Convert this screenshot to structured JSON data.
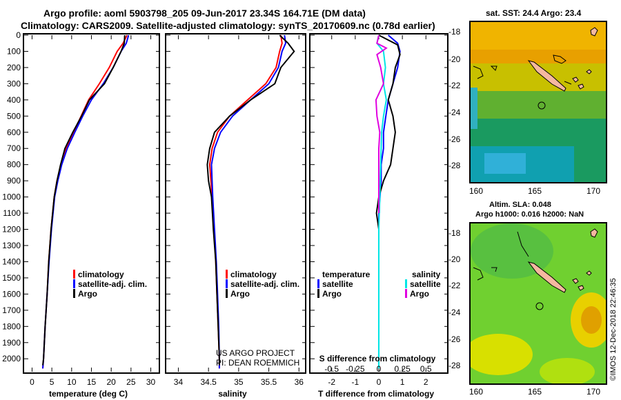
{
  "header": {
    "line1": "Argo profile: aoml 5903798_205 09-Jun-2017 23.34S 164.71E (DM data)",
    "line2": "Climatology: CARS2009. Satellite-adjusted climatology: synTS_20170609.nc (0.78d earlier)"
  },
  "depth_ticks": [
    "0",
    "100",
    "200",
    "300",
    "400",
    "500",
    "600",
    "700",
    "800",
    "900",
    "1000",
    "1100",
    "1200",
    "1300",
    "1400",
    "1500",
    "1600",
    "1700",
    "1800",
    "1900",
    "2000"
  ],
  "temp_panel": {
    "xlabel": "temperature (deg C)",
    "xticks": [
      "0",
      "5",
      "10",
      "15",
      "20",
      "25",
      "30"
    ],
    "legend": [
      "climatology",
      "satellite-adj. clim.",
      "Argo"
    ]
  },
  "sal_panel": {
    "xlabel": "salinity",
    "xticks": [
      "34",
      "34.5",
      "35",
      "35.5",
      "36"
    ],
    "legend": [
      "climatology",
      "satellite-adj. clim.",
      "Argo"
    ],
    "credit1": "US ARGO PROJECT",
    "credit2": "PI: DEAN ROEMMICH"
  },
  "diff_panel": {
    "xlabel": "T difference from climatology",
    "top_label": "S difference from climatology",
    "xticks": [
      "-2",
      "-1",
      "0",
      "1",
      "2"
    ],
    "top_ticks": [
      "-0.5",
      "-0.25",
      "0",
      "0.25",
      "0.5"
    ],
    "legend_t_title": "temperature",
    "legend_s_title": "salinity",
    "legend_t": [
      "satellite",
      "Argo"
    ],
    "legend_s": [
      "satellite",
      "Argo"
    ]
  },
  "map_top": {
    "title": "sat. SST: 24.4 Argo: 23.4",
    "lat_ticks": [
      "-18",
      "-20",
      "-22",
      "-24",
      "-26",
      "-28"
    ],
    "lon_ticks": [
      "160",
      "165",
      "170"
    ]
  },
  "map_bottom": {
    "title1": "Altim. SLA: 0.048",
    "title2": "Argo h1000: 0.016 h2000: NaN",
    "lat_ticks": [
      "-18",
      "-20",
      "-22",
      "-24",
      "-26",
      "-28"
    ],
    "lon_ticks": [
      "160",
      "165",
      "170"
    ]
  },
  "footer": "©IMOS 12-Dec-2018 22:46:35",
  "colors": {
    "climatology": "#ff0000",
    "satellite": "#0000ff",
    "argo": "#000000",
    "sal_satellite": "#00e5e5",
    "sal_argo": "#e000e0"
  },
  "chart_data": [
    {
      "type": "line",
      "xlabel": "temperature (deg C)",
      "ylabel": "",
      "xlim": [
        -2,
        32
      ],
      "ylim": [
        2080,
        0
      ],
      "series": [
        {
          "name": "climatology",
          "values": [
            [
              24,
              0
            ],
            [
              23,
              50
            ],
            [
              21.5,
              100
            ],
            [
              19.5,
              200
            ],
            [
              17,
              300
            ],
            [
              14.3,
              400
            ],
            [
              12.4,
              500
            ],
            [
              10.5,
              600
            ],
            [
              8.6,
              700
            ],
            [
              7.3,
              800
            ],
            [
              6.3,
              900
            ],
            [
              5.6,
              1000
            ],
            [
              4.8,
              1200
            ],
            [
              4.2,
              1400
            ],
            [
              3.8,
              1600
            ],
            [
              3.3,
              1800
            ],
            [
              2.9,
              2000
            ],
            [
              2.7,
              2060
            ]
          ]
        },
        {
          "name": "satellite-adj. clim.",
          "values": [
            [
              24.4,
              0
            ],
            [
              23.8,
              50
            ],
            [
              22.5,
              100
            ],
            [
              20.5,
              200
            ],
            [
              18,
              300
            ],
            [
              15,
              400
            ],
            [
              12.8,
              500
            ],
            [
              10.8,
              600
            ],
            [
              8.9,
              700
            ],
            [
              7.5,
              800
            ],
            [
              6.5,
              900
            ],
            [
              5.7,
              1000
            ],
            [
              4.9,
              1200
            ],
            [
              4.3,
              1400
            ],
            [
              3.8,
              1600
            ],
            [
              3.3,
              1800
            ],
            [
              2.9,
              2000
            ],
            [
              2.7,
              2060
            ]
          ]
        },
        {
          "name": "Argo",
          "values": [
            [
              23.4,
              0
            ],
            [
              23.3,
              50
            ],
            [
              22.5,
              100
            ],
            [
              20.5,
              200
            ],
            [
              18.3,
              300
            ],
            [
              14.5,
              400
            ],
            [
              12.5,
              500
            ],
            [
              10.3,
              600
            ],
            [
              8.3,
              700
            ],
            [
              7.2,
              800
            ],
            [
              6.3,
              900
            ],
            [
              5.6,
              1000
            ],
            [
              4.8,
              1200
            ],
            [
              4.2,
              1400
            ],
            [
              3.8,
              1600
            ],
            [
              3.3,
              1800
            ],
            [
              2.9,
              2000
            ],
            [
              2.7,
              2040
            ]
          ]
        }
      ]
    },
    {
      "type": "line",
      "xlabel": "salinity",
      "ylabel": "",
      "xlim": [
        33.8,
        36.1
      ],
      "ylim": [
        2080,
        0
      ],
      "series": [
        {
          "name": "climatology",
          "values": [
            [
              35.7,
              0
            ],
            [
              35.72,
              50
            ],
            [
              35.68,
              100
            ],
            [
              35.62,
              200
            ],
            [
              35.45,
              300
            ],
            [
              35.15,
              400
            ],
            [
              34.85,
              500
            ],
            [
              34.65,
              600
            ],
            [
              34.56,
              700
            ],
            [
              34.52,
              800
            ],
            [
              34.54,
              900
            ],
            [
              34.56,
              1000
            ],
            [
              34.59,
              1200
            ],
            [
              34.62,
              1400
            ],
            [
              34.64,
              1600
            ],
            [
              34.66,
              1800
            ],
            [
              34.68,
              2000
            ],
            [
              34.68,
              2060
            ]
          ]
        },
        {
          "name": "satellite-adj. clim.",
          "values": [
            [
              35.76,
              0
            ],
            [
              35.78,
              50
            ],
            [
              35.72,
              100
            ],
            [
              35.66,
              200
            ],
            [
              35.5,
              300
            ],
            [
              35.2,
              400
            ],
            [
              34.9,
              500
            ],
            [
              34.7,
              600
            ],
            [
              34.6,
              700
            ],
            [
              34.55,
              800
            ],
            [
              34.56,
              900
            ],
            [
              34.57,
              1000
            ],
            [
              34.6,
              1200
            ],
            [
              34.63,
              1400
            ],
            [
              34.65,
              1600
            ],
            [
              34.67,
              1800
            ],
            [
              34.68,
              2000
            ],
            [
              34.68,
              2060
            ]
          ]
        },
        {
          "name": "Argo",
          "values": [
            [
              35.68,
              0
            ],
            [
              35.82,
              50
            ],
            [
              35.92,
              100
            ],
            [
              35.7,
              200
            ],
            [
              35.6,
              300
            ],
            [
              35.2,
              400
            ],
            [
              34.85,
              500
            ],
            [
              34.6,
              600
            ],
            [
              34.52,
              700
            ],
            [
              34.48,
              800
            ],
            [
              34.5,
              900
            ],
            [
              34.55,
              1000
            ],
            [
              34.58,
              1200
            ],
            [
              34.62,
              1400
            ],
            [
              34.64,
              1600
            ],
            [
              34.66,
              1800
            ],
            [
              34.68,
              2000
            ],
            [
              34.68,
              2040
            ]
          ]
        }
      ]
    },
    {
      "type": "line",
      "xlabel": "T difference from climatology",
      "ylabel": "",
      "xlim": [
        -2.9,
        2.9
      ],
      "ylim": [
        2080,
        0
      ],
      "series": [
        {
          "name": "satellite",
          "values": [
            [
              0.4,
              0
            ],
            [
              0.8,
              50
            ],
            [
              0.9,
              100
            ],
            [
              0.8,
              200
            ],
            [
              0.6,
              300
            ],
            [
              0.4,
              400
            ],
            [
              0.3,
              500
            ],
            [
              0.2,
              600
            ],
            [
              0.2,
              700
            ],
            [
              0.1,
              800
            ],
            [
              0.1,
              900
            ],
            [
              0.05,
              1000
            ],
            [
              0,
              1100
            ],
            [
              0,
              1200
            ]
          ]
        },
        {
          "name": "Argo",
          "values": [
            [
              0,
              0
            ],
            [
              0.8,
              60
            ],
            [
              0.9,
              120
            ],
            [
              0.7,
              200
            ],
            [
              0.6,
              300
            ],
            [
              0.4,
              400
            ],
            [
              0.6,
              500
            ],
            [
              0.7,
              600
            ],
            [
              0.6,
              700
            ],
            [
              0.5,
              800
            ],
            [
              0.2,
              900
            ],
            [
              0,
              1000
            ],
            [
              -0.1,
              1100
            ],
            [
              0,
              1200
            ],
            [
              0,
              1300
            ],
            [
              0,
              1400
            ],
            [
              0,
              1500
            ],
            [
              0,
              1650
            ]
          ]
        },
        {
          "name": "satellite",
          "values": [
            [
              0,
              0
            ],
            [
              -0.02,
              50
            ],
            [
              0.05,
              100
            ],
            [
              0.07,
              200
            ],
            [
              0.05,
              300
            ],
            [
              0.08,
              400
            ],
            [
              0.05,
              500
            ],
            [
              0.03,
              600
            ],
            [
              0.02,
              800
            ],
            [
              0.01,
              1000
            ],
            [
              0,
              1200
            ],
            [
              0,
              1500
            ],
            [
              0,
              1800
            ],
            [
              0,
              2000
            ],
            [
              0,
              2060
            ]
          ]
        },
        {
          "name": "Argo",
          "values": [
            [
              0,
              0
            ],
            [
              -0.02,
              50
            ],
            [
              0.08,
              80
            ],
            [
              -0.02,
              120
            ],
            [
              0.02,
              200
            ],
            [
              0.05,
              300
            ],
            [
              -0.03,
              400
            ],
            [
              -0.02,
              500
            ],
            [
              0.01,
              600
            ],
            [
              0,
              700
            ],
            [
              0,
              800
            ],
            [
              0,
              900
            ],
            [
              0,
              1000
            ],
            [
              0,
              1100
            ]
          ]
        }
      ]
    }
  ]
}
